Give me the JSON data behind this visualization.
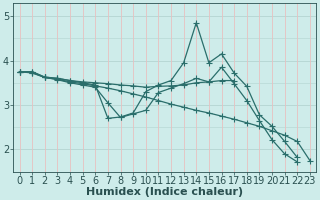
{
  "background_color": "#ceecea",
  "grid_color_h": "#b8d8d5",
  "grid_color_v": "#e8c0c0",
  "line_color": "#2a6e6b",
  "xlabel": "Humidex (Indice chaleur)",
  "xlim": [
    -0.5,
    23.5
  ],
  "ylim": [
    1.5,
    5.3
  ],
  "yticks": [
    2,
    3,
    4,
    5
  ],
  "xticks": [
    0,
    1,
    2,
    3,
    4,
    5,
    6,
    7,
    8,
    9,
    10,
    11,
    12,
    13,
    14,
    15,
    16,
    17,
    18,
    19,
    20,
    21,
    22,
    23
  ],
  "series": [
    {
      "x": [
        0,
        1,
        2,
        3,
        4,
        5,
        6,
        7,
        8,
        9,
        10,
        11,
        12,
        13,
        14,
        15,
        16,
        17,
        18,
        19,
        20,
        21,
        22
      ],
      "y": [
        3.75,
        3.75,
        3.63,
        3.6,
        3.55,
        3.5,
        3.45,
        2.7,
        2.73,
        2.82,
        3.3,
        3.45,
        3.55,
        3.95,
        4.85,
        3.95,
        4.15,
        3.72,
        3.42,
        2.78,
        2.52,
        2.18,
        1.82
      ]
    },
    {
      "x": [
        0,
        1,
        2,
        3,
        4,
        5,
        6,
        7,
        8,
        9,
        10,
        11,
        12,
        13,
        14,
        15,
        16,
        17
      ],
      "y": [
        3.75,
        3.75,
        3.62,
        3.6,
        3.55,
        3.52,
        3.5,
        3.48,
        3.45,
        3.43,
        3.4,
        3.42,
        3.43,
        3.45,
        3.5,
        3.52,
        3.55,
        3.55
      ]
    },
    {
      "x": [
        0,
        1,
        2,
        3,
        4,
        5,
        6,
        7,
        8,
        9,
        10,
        11,
        12,
        13,
        14,
        15,
        16,
        17,
        18,
        19,
        20,
        21,
        22,
        23
      ],
      "y": [
        3.75,
        3.72,
        3.62,
        3.58,
        3.52,
        3.48,
        3.43,
        3.38,
        3.32,
        3.25,
        3.18,
        3.1,
        3.02,
        2.95,
        2.88,
        2.82,
        2.75,
        2.68,
        2.6,
        2.52,
        2.42,
        2.32,
        2.18,
        1.75
      ]
    },
    {
      "x": [
        0,
        1,
        2,
        3,
        4,
        5,
        6,
        7,
        8,
        9,
        10,
        11,
        12,
        13,
        14,
        15,
        16,
        17,
        18,
        19,
        20,
        21,
        22,
        23
      ],
      "y": [
        3.75,
        3.73,
        3.62,
        3.57,
        3.5,
        3.45,
        3.4,
        3.05,
        2.72,
        2.8,
        2.88,
        3.28,
        3.38,
        3.48,
        3.6,
        3.52,
        3.85,
        3.48,
        3.1,
        2.65,
        2.22,
        1.9,
        1.72,
        null
      ]
    }
  ],
  "marker": "+",
  "marker_size": 5,
  "line_width": 0.9,
  "font_color": "#2a5050",
  "xlabel_fontsize": 8,
  "tick_fontsize": 7
}
